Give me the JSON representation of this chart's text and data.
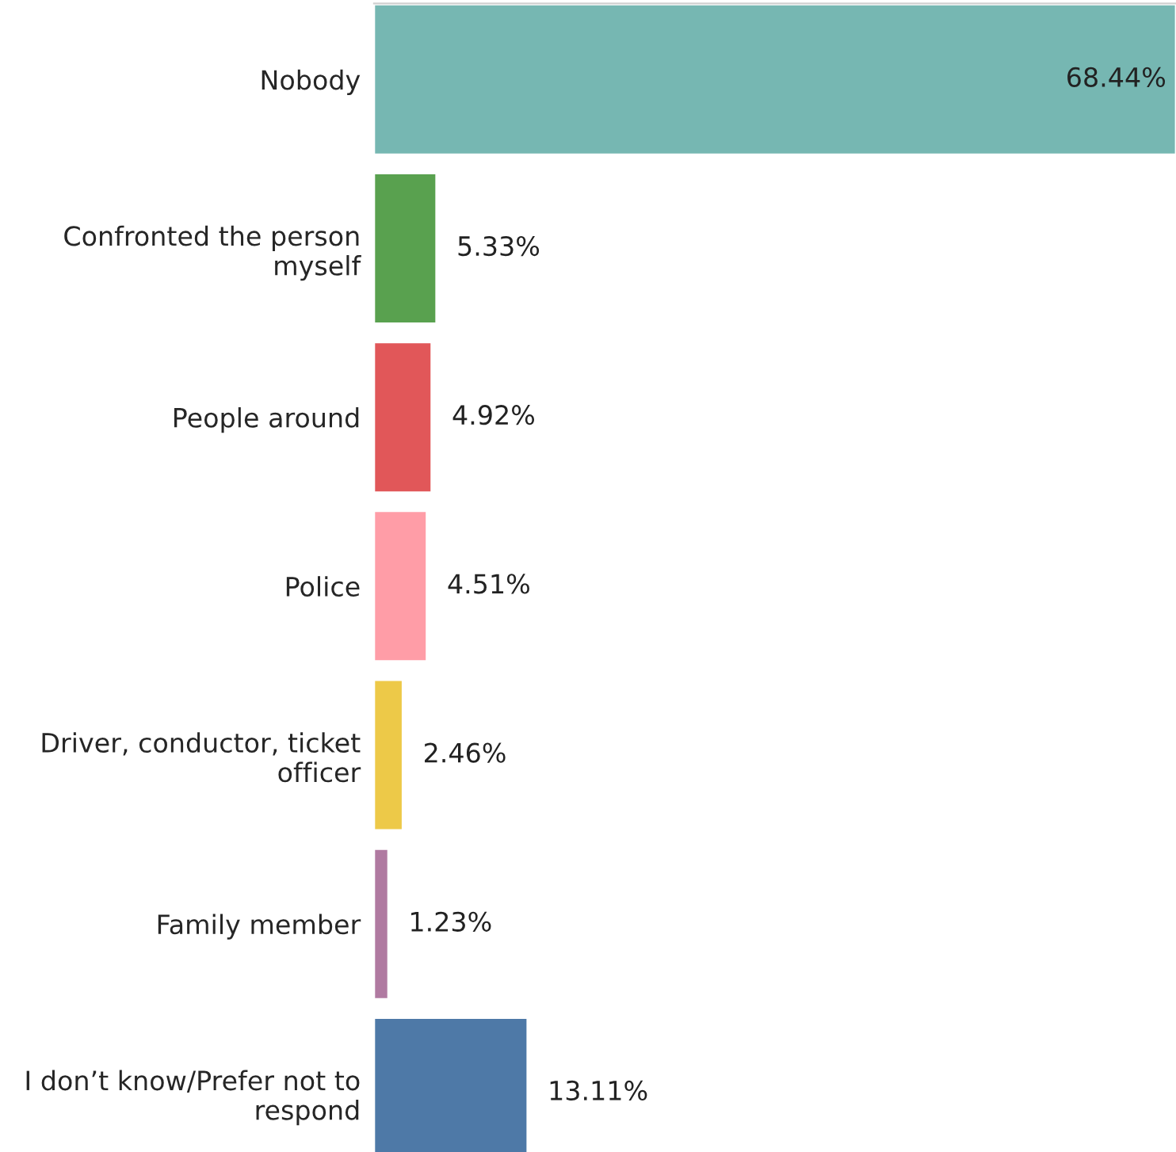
{
  "chart_data": {
    "type": "bar",
    "orientation": "horizontal",
    "categories": [
      "Nobody",
      "Confronted the person\nmyself",
      "People around",
      "Police",
      "Driver, conductor, ticket\nofficer",
      "Family member",
      "I don’t know/Prefer not to\nrespond"
    ],
    "values": [
      68.44,
      5.33,
      4.92,
      4.51,
      2.46,
      1.23,
      13.11
    ],
    "colors": [
      "#76b7b2",
      "#59a14f",
      "#e15759",
      "#ff9da7",
      "#edc948",
      "#b07aa1",
      "#4e79a7"
    ],
    "value_labels": [
      "68.44%",
      "5.33%",
      "4.92%",
      "4.51%",
      "2.46%",
      "1.23%",
      "13.11%"
    ],
    "grid": false,
    "legend": false
  }
}
